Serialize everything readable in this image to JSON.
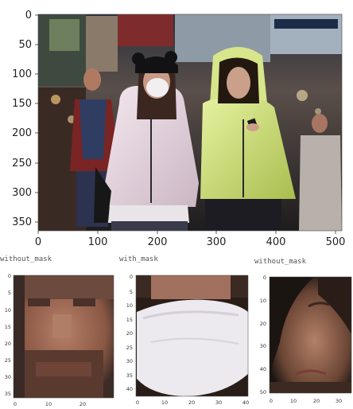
{
  "main_figure": {
    "y_ticks": [
      "0",
      "50",
      "100",
      "150",
      "200",
      "250",
      "300",
      "350"
    ],
    "x_ticks": [
      "0",
      "100",
      "200",
      "300",
      "400",
      "500"
    ]
  },
  "crops": [
    {
      "title": "without_mask",
      "y_ticks": [
        "0",
        "5",
        "10",
        "15",
        "20",
        "25",
        "30",
        "35"
      ],
      "x_ticks": [
        "0",
        "10",
        "20"
      ]
    },
    {
      "title": "with_mask",
      "y_ticks": [
        "0",
        "5",
        "10",
        "15",
        "20",
        "25",
        "30",
        "35",
        "40"
      ],
      "x_ticks": [
        "0",
        "10",
        "20",
        "30",
        "40"
      ]
    },
    {
      "title": "without_mask",
      "y_ticks": [
        "0",
        "10",
        "20",
        "30",
        "40",
        "50"
      ],
      "x_ticks": [
        "0",
        "10",
        "20",
        "30"
      ]
    }
  ]
}
